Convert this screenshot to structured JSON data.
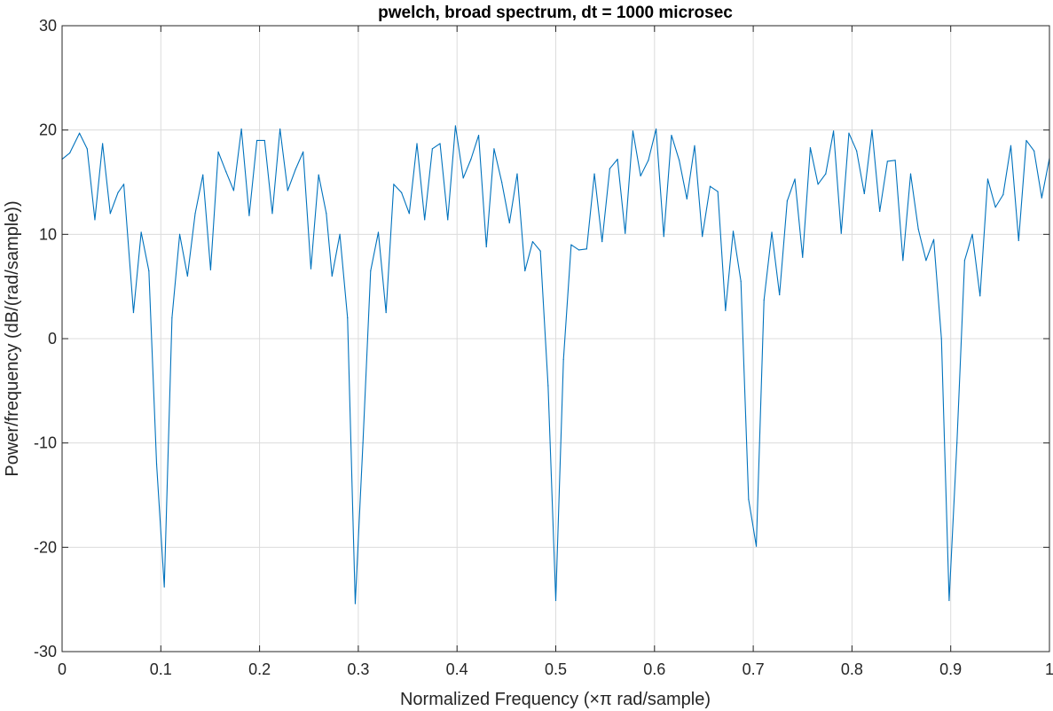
{
  "chart_data": {
    "type": "line",
    "title": "pwelch, broad spectrum, dt = 1000 microsec",
    "xlabel": "Normalized Frequency  (×π rad/sample)",
    "ylabel": "Power/frequency (dB/(rad/sample))",
    "xlim": [
      0,
      1
    ],
    "ylim": [
      -30,
      30
    ],
    "grid": true,
    "xticks": [
      0,
      0.1,
      0.2,
      0.3,
      0.4,
      0.5,
      0.6,
      0.7,
      0.8,
      0.9,
      1
    ],
    "xtick_labels": [
      "0",
      "0.1",
      "0.2",
      "0.3",
      "0.4",
      "0.5",
      "0.6",
      "0.7",
      "0.8",
      "0.9",
      "1"
    ],
    "yticks": [
      -30,
      -20,
      -10,
      0,
      10,
      20,
      30
    ],
    "ytick_labels": [
      "-30",
      "-20",
      "-10",
      "0",
      "10",
      "20",
      "30"
    ],
    "series": [
      {
        "color": "#0072BD",
        "x": [
          0,
          0.0078,
          0.0176,
          0.0254,
          0.0332,
          0.041,
          0.0488,
          0.0566,
          0.0625,
          0.0723,
          0.0801,
          0.0879,
          0.0957,
          0.1035,
          0.1113,
          0.1191,
          0.127,
          0.1348,
          0.1426,
          0.1504,
          0.1582,
          0.166,
          0.1738,
          0.1816,
          0.1895,
          0.1973,
          0.2051,
          0.2129,
          0.2207,
          0.2285,
          0.2363,
          0.2441,
          0.252,
          0.2598,
          0.2676,
          0.2734,
          0.2813,
          0.2891,
          0.2969,
          0.3047,
          0.3125,
          0.3203,
          0.3281,
          0.3359,
          0.3438,
          0.3516,
          0.3594,
          0.3672,
          0.375,
          0.3828,
          0.3906,
          0.3984,
          0.4063,
          0.4141,
          0.4219,
          0.4297,
          0.4375,
          0.4453,
          0.4531,
          0.4609,
          0.4688,
          0.4766,
          0.4844,
          0.4922,
          0.5,
          0.5078,
          0.5156,
          0.5234,
          0.5313,
          0.5391,
          0.5469,
          0.5547,
          0.5625,
          0.5703,
          0.5781,
          0.5859,
          0.5938,
          0.6016,
          0.6094,
          0.6172,
          0.625,
          0.6328,
          0.6406,
          0.6484,
          0.6563,
          0.6641,
          0.6719,
          0.6797,
          0.6875,
          0.6953,
          0.7031,
          0.7109,
          0.7188,
          0.7266,
          0.7344,
          0.7422,
          0.75,
          0.7578,
          0.7656,
          0.7734,
          0.7813,
          0.7891,
          0.7969,
          0.8047,
          0.8125,
          0.8203,
          0.8281,
          0.8359,
          0.8438,
          0.8516,
          0.8594,
          0.8672,
          0.875,
          0.8828,
          0.8906,
          0.8984,
          0.9063,
          0.9141,
          0.9219,
          0.9297,
          0.9375,
          0.9453,
          0.9531,
          0.9609,
          0.9688,
          0.9766,
          0.9844,
          0.9922,
          1
        ],
        "y": [
          17.2,
          17.8,
          19.7,
          18.2,
          11.4,
          18.7,
          12.0,
          14.0,
          14.8,
          2.5,
          10.2,
          6.5,
          -12.0,
          -23.8,
          2.0,
          10.0,
          6.0,
          12.0,
          15.7,
          6.6,
          17.9,
          16.0,
          14.2,
          20.1,
          11.8,
          19.0,
          19.0,
          12.0,
          20.1,
          14.2,
          16.2,
          17.9,
          6.7,
          15.7,
          12.0,
          6.0,
          10.0,
          2.0,
          -25.4,
          -10.0,
          6.5,
          10.2,
          2.5,
          14.8,
          14.0,
          12.0,
          18.7,
          11.4,
          18.2,
          18.7,
          11.4,
          20.4,
          15.4,
          17.2,
          19.5,
          8.8,
          18.2,
          15.0,
          11.1,
          15.8,
          6.5,
          9.3,
          8.4,
          -4.5,
          -25.1,
          -2.0,
          9.0,
          8.5,
          8.6,
          15.8,
          9.3,
          16.3,
          17.2,
          10.1,
          19.9,
          15.6,
          17.1,
          20.1,
          9.8,
          19.5,
          17.1,
          13.4,
          18.5,
          9.8,
          14.6,
          14.1,
          2.7,
          10.3,
          5.5,
          -15.4,
          -19.9,
          3.7,
          10.2,
          4.2,
          13.2,
          15.3,
          7.8,
          18.3,
          14.8,
          15.8,
          19.9,
          10.1,
          19.7,
          18.0,
          13.9,
          20.0,
          12.2,
          17.0,
          17.1,
          7.5,
          15.8,
          10.5,
          7.5,
          9.5,
          0.0,
          -25.1,
          -10.0,
          7.5,
          10.0,
          4.1,
          15.3,
          12.6,
          13.8,
          18.5,
          9.4,
          19.0,
          18.0,
          13.5,
          17.3
        ]
      }
    ]
  }
}
